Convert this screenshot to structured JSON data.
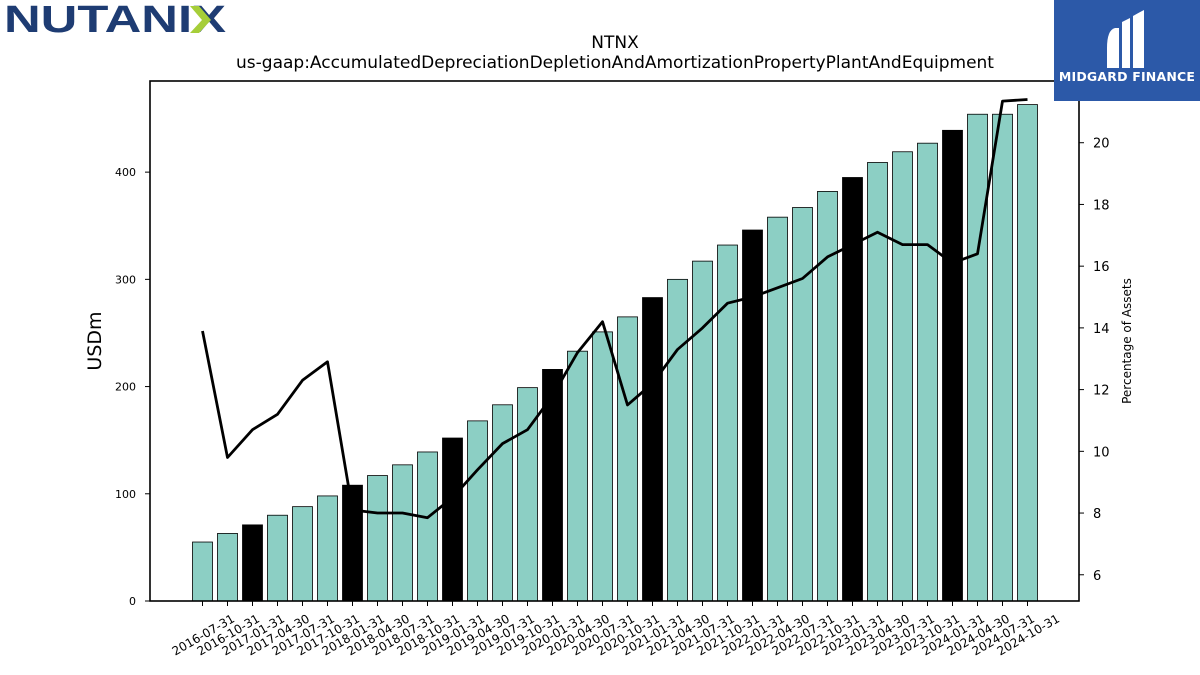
{
  "branding": {
    "left_logo_text": "NUTANIX",
    "right_logo_text": "MIDGARD FINANCE"
  },
  "chart_data": {
    "type": "bar",
    "title": "NTNX",
    "subtitle": "us-gaap:AccumulatedDepreciationDepletionAndAmortizationPropertyPlantAndEquipment",
    "ylabel": "USDm",
    "y2label": "Percentage of Assets",
    "ylim": [
      0,
      485
    ],
    "y2lim": [
      5.15,
      22.0
    ],
    "yticks": [
      0,
      100,
      200,
      300,
      400
    ],
    "y2ticks": [
      6,
      8,
      10,
      12,
      14,
      16,
      18,
      20
    ],
    "categories": [
      "2016-07-31",
      "2016-10-31",
      "2017-01-31",
      "2017-04-30",
      "2017-07-31",
      "2017-10-31",
      "2018-01-31",
      "2018-04-30",
      "2018-07-31",
      "2018-10-31",
      "2019-01-31",
      "2019-04-30",
      "2019-07-31",
      "2019-10-31",
      "2020-01-31",
      "2020-04-30",
      "2020-07-31",
      "2020-10-31",
      "2021-01-31",
      "2021-04-30",
      "2021-07-31",
      "2021-10-31",
      "2022-01-31",
      "2022-04-30",
      "2022-07-31",
      "2022-10-31",
      "2023-01-31",
      "2023-04-30",
      "2023-07-31",
      "2023-10-31",
      "2024-01-31",
      "2024-04-30",
      "2024-07-31",
      "2024-10-31"
    ],
    "series": [
      {
        "kind": "bar",
        "values": [
          55,
          63,
          71,
          80,
          88,
          98,
          108,
          117,
          127,
          139,
          152,
          168,
          183,
          199,
          216,
          233,
          251,
          265,
          283,
          300,
          317,
          332,
          346,
          358,
          367,
          382,
          395,
          409,
          419,
          427,
          439,
          454,
          454,
          463
        ],
        "highlight": [
          false,
          false,
          true,
          false,
          false,
          false,
          true,
          false,
          false,
          false,
          true,
          false,
          false,
          false,
          true,
          false,
          false,
          false,
          true,
          false,
          false,
          false,
          true,
          false,
          false,
          false,
          true,
          false,
          false,
          false,
          true,
          false,
          false,
          false
        ]
      },
      {
        "kind": "line",
        "axis": "right",
        "values": [
          13.9,
          9.8,
          10.7,
          11.2,
          12.3,
          12.9,
          8.1,
          8.0,
          8.0,
          7.85,
          8.5,
          9.4,
          10.25,
          10.7,
          11.8,
          13.2,
          14.2,
          11.5,
          12.2,
          13.3,
          14.0,
          14.8,
          15.0,
          15.3,
          15.6,
          16.3,
          16.7,
          17.1,
          16.7,
          16.7,
          16.1,
          16.4,
          21.35,
          21.4
        ]
      }
    ],
    "colors": {
      "bar": "#8ccfc4",
      "bar_highlight": "#000000",
      "line": "#000000"
    },
    "grid": false,
    "legend": "none"
  }
}
